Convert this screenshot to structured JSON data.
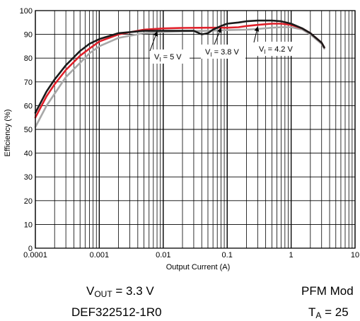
{
  "chart_data": {
    "type": "line",
    "xscale": "log",
    "xlim": [
      0.0001,
      10
    ],
    "ylim": [
      0,
      100
    ],
    "xlabel": "Output Current (A)",
    "ylabel": "Efficiency (%)",
    "grid": true,
    "x_ticks": [
      "0.0001",
      "0.001",
      "0.01",
      "0.1",
      "1",
      "10"
    ],
    "y_ticks": [
      "0",
      "10",
      "20",
      "30",
      "40",
      "50",
      "60",
      "70",
      "80",
      "90",
      "100"
    ],
    "series": [
      {
        "name": "VI = 3.8 V",
        "color": "#1a1a1a",
        "x": [
          0.0001,
          0.00015,
          0.0002,
          0.0003,
          0.0005,
          0.0007,
          0.001,
          0.002,
          0.005,
          0.01,
          0.02,
          0.03,
          0.04,
          0.05,
          0.06,
          0.08,
          0.1,
          0.15,
          0.2,
          0.3,
          0.5,
          0.7,
          1.0,
          1.5,
          2.0,
          3.0,
          3.3
        ],
        "y": [
          57,
          66,
          71,
          77,
          83,
          86,
          88,
          90.5,
          91.5,
          91.5,
          91.5,
          91.5,
          90,
          90.5,
          92,
          93.5,
          94.5,
          95,
          95.5,
          95.8,
          95.8,
          95.5,
          94.5,
          92.5,
          90.5,
          86.5,
          84.5
        ]
      },
      {
        "name": "VI = 4.2 V",
        "color": "#e0202a",
        "x": [
          0.0001,
          0.00015,
          0.0002,
          0.0003,
          0.0005,
          0.0007,
          0.001,
          0.002,
          0.005,
          0.01,
          0.02,
          0.05,
          0.1,
          0.15,
          0.2,
          0.3,
          0.5,
          0.7,
          1.0,
          1.5,
          2.0,
          3.0,
          3.3
        ],
        "y": [
          55,
          64,
          69,
          75,
          81,
          84,
          87,
          90,
          92,
          92.5,
          92.7,
          92.8,
          92.8,
          93,
          93.5,
          94,
          94.5,
          94.5,
          94,
          92.5,
          90.5,
          86.5,
          84.5
        ]
      },
      {
        "name": "VI = 5 V",
        "color": "#a8a8a8",
        "x": [
          0.0001,
          0.00015,
          0.0002,
          0.0003,
          0.0005,
          0.0007,
          0.001,
          0.002,
          0.005,
          0.01,
          0.02,
          0.05,
          0.1,
          0.2,
          0.3,
          0.5,
          0.7,
          1.0,
          1.5,
          2.0,
          3.0,
          3.3
        ],
        "y": [
          51,
          60,
          65,
          72,
          78,
          82,
          85,
          88.5,
          90.5,
          91,
          91.3,
          91.5,
          91.8,
          92,
          92.3,
          92.8,
          93,
          93,
          92,
          90,
          86,
          84
        ]
      }
    ],
    "annotations": [
      {
        "label": "VI = 5 V",
        "points_to": {
          "x": 0.008,
          "y": 92
        }
      },
      {
        "label": "VI = 3.8 V",
        "points_to": {
          "x": 0.08,
          "y": 93.5
        }
      },
      {
        "label": "VI = 4.2 V",
        "points_to": {
          "x": 0.3,
          "y": 94
        }
      }
    ],
    "notes": {
      "vout": "VOUT = 3.3 V",
      "inductor": "DEF322512-1R0",
      "mode": "PFM Mod",
      "ta": "TA = 25"
    }
  }
}
